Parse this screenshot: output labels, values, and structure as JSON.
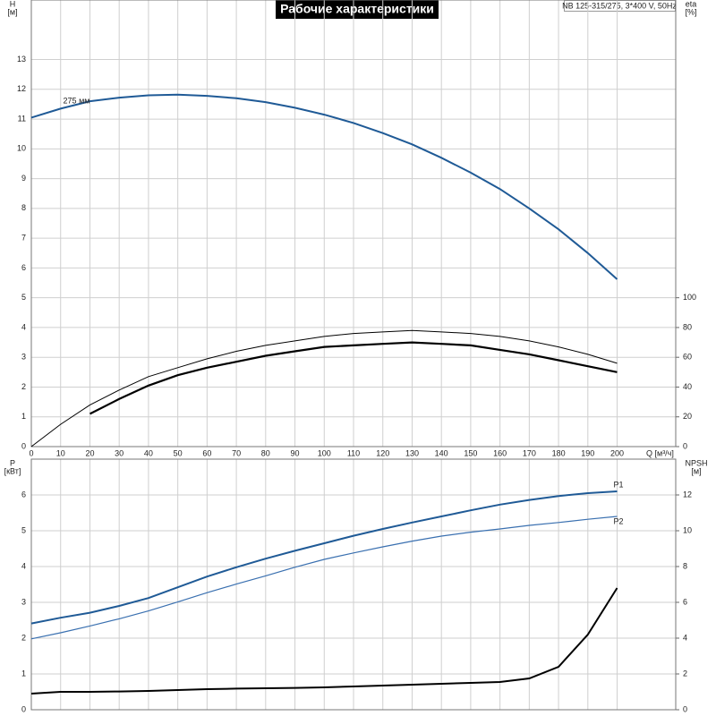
{
  "chart_data": [
    {
      "type": "line",
      "title": "Рабочие характеристики",
      "model": "NB 125-315/275, 3*400 V, 50Hz",
      "x_label": "Q [м³/ч]",
      "y_label": [
        "H",
        "[м]"
      ],
      "y2_label": [
        "eta",
        "[%]"
      ],
      "x": [
        0,
        10,
        20,
        30,
        40,
        50,
        60,
        70,
        80,
        90,
        100,
        110,
        120,
        130,
        140,
        150,
        160,
        170,
        180,
        190,
        200
      ],
      "xlim": [
        0,
        220
      ],
      "xticks": [
        0,
        10,
        20,
        30,
        40,
        50,
        60,
        70,
        80,
        90,
        100,
        110,
        120,
        130,
        140,
        150,
        160,
        170,
        180,
        190,
        200
      ],
      "ylim": [
        0,
        15
      ],
      "yticks": [
        0,
        1,
        2,
        3,
        4,
        5,
        6,
        7,
        8,
        9,
        10,
        11,
        12,
        13
      ],
      "y2lim": [
        0,
        300
      ],
      "y2ticks": [
        0,
        20,
        40,
        60,
        80,
        100
      ],
      "grid": true,
      "series": [
        {
          "name": "275 мм",
          "color": "#1f5a96",
          "line_width": 2,
          "values": [
            11.05,
            11.35,
            11.6,
            11.72,
            11.8,
            11.82,
            11.78,
            11.7,
            11.57,
            11.38,
            11.15,
            10.87,
            10.53,
            10.15,
            9.7,
            9.2,
            8.65,
            8.0,
            7.3,
            6.5,
            5.62
          ]
        },
        {
          "color": "#000000",
          "line_width": 1,
          "axis": "y2",
          "values": [
            0,
            15,
            28,
            38,
            47,
            53,
            59,
            64,
            68,
            71,
            74,
            76,
            77,
            78,
            77,
            76,
            74,
            71,
            67,
            62,
            56
          ]
        },
        {
          "color": "#000000",
          "line_width": 2.2,
          "axis": "y2",
          "values": [
            null,
            null,
            22,
            32,
            41,
            48,
            53,
            57,
            61,
            64,
            67,
            68,
            69,
            70,
            69,
            68,
            65,
            62,
            58,
            54,
            50
          ]
        }
      ]
    },
    {
      "type": "line",
      "y_label": [
        "P",
        "[кВт]"
      ],
      "y2_label": [
        "NPSH",
        "[м]"
      ],
      "x": [
        0,
        10,
        20,
        30,
        40,
        50,
        60,
        70,
        80,
        90,
        100,
        110,
        120,
        130,
        140,
        150,
        160,
        170,
        180,
        190,
        200
      ],
      "xlim": [
        0,
        220
      ],
      "ylim": [
        0,
        7
      ],
      "yticks": [
        0,
        1,
        2,
        3,
        4,
        5,
        6
      ],
      "y2lim": [
        0,
        14
      ],
      "y2ticks": [
        0,
        2,
        4,
        6,
        8,
        10,
        12
      ],
      "grid": true,
      "series": [
        {
          "name": "P1",
          "color": "#1f5a96",
          "line_width": 2,
          "values": [
            2.41,
            2.57,
            2.71,
            2.9,
            3.12,
            3.42,
            3.72,
            3.98,
            4.22,
            4.44,
            4.65,
            4.86,
            5.05,
            5.23,
            5.4,
            5.57,
            5.73,
            5.86,
            5.97,
            6.05,
            6.1
          ]
        },
        {
          "name": "P2",
          "color": "#3a70b0",
          "line_width": 1.2,
          "values": [
            1.98,
            2.15,
            2.34,
            2.54,
            2.76,
            3.01,
            3.27,
            3.51,
            3.74,
            3.98,
            4.2,
            4.38,
            4.55,
            4.71,
            4.85,
            4.96,
            5.05,
            5.15,
            5.23,
            5.32,
            5.4
          ]
        },
        {
          "color": "#000000",
          "line_width": 2,
          "axis": "y2",
          "values": [
            0.9,
            1.0,
            1.0,
            1.02,
            1.05,
            1.1,
            1.15,
            1.18,
            1.2,
            1.22,
            1.25,
            1.3,
            1.35,
            1.4,
            1.45,
            1.5,
            1.55,
            1.75,
            2.4,
            4.2,
            6.8
          ]
        }
      ]
    }
  ]
}
